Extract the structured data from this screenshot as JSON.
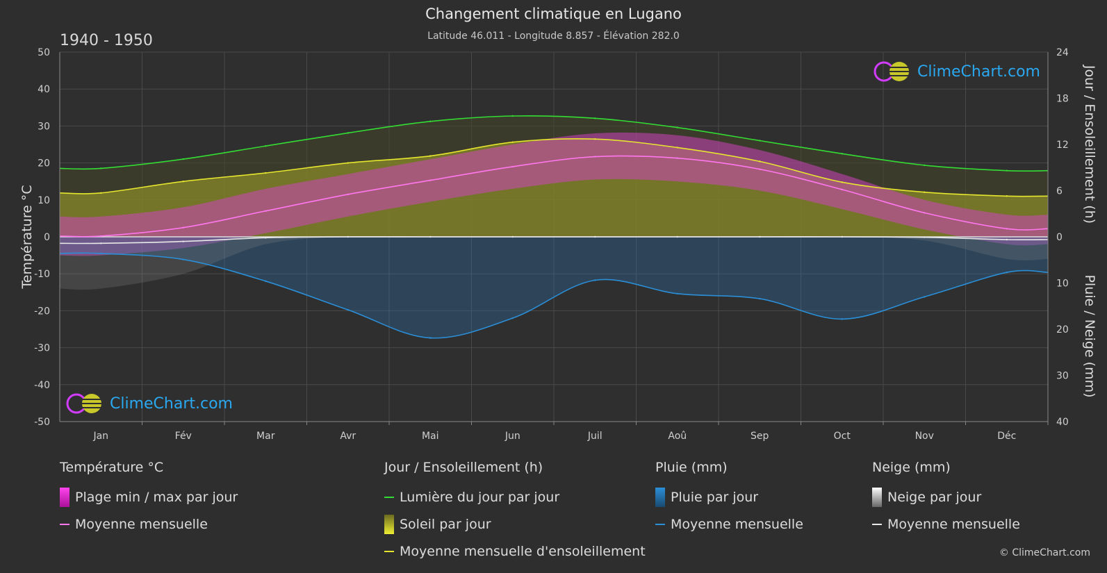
{
  "header": {
    "title": "Changement climatique en Lugano",
    "subtitle": "Latitude 46.011 - Longitude 8.857 - Élévation 282.0",
    "period": "1940 - 1950"
  },
  "logo": {
    "text": "ClimeChart.com"
  },
  "copyright": "© ClimeChart.com",
  "legend": {
    "temperature": {
      "title": "Température °C",
      "range": "Plage min / max par jour",
      "mean": "Moyenne mensuelle"
    },
    "sun": {
      "title": "Jour / Ensoleillement (h)",
      "daylight": "Lumière du jour par jour",
      "sunshine": "Soleil par jour",
      "sun_mean": "Moyenne mensuelle d'ensoleillement"
    },
    "rain": {
      "title": "Pluie (mm)",
      "daily": "Pluie par jour",
      "mean": "Moyenne mensuelle"
    },
    "snow": {
      "title": "Neige (mm)",
      "daily": "Neige par jour",
      "mean": "Moyenne mensuelle"
    }
  },
  "chart_data": {
    "type": "line",
    "months": [
      "Jan",
      "Fév",
      "Mar",
      "Avr",
      "Mai",
      "Jun",
      "Juil",
      "Aoû",
      "Sep",
      "Oct",
      "Nov",
      "Déc"
    ],
    "axes": {
      "left": {
        "label": "Température °C",
        "min": -50,
        "max": 50,
        "ticks": [
          50,
          40,
          30,
          20,
          10,
          0,
          -10,
          -20,
          -30,
          -40,
          -50
        ]
      },
      "right_top": {
        "label": "Jour / Ensoleillement (h)",
        "min": 0,
        "max": 24,
        "ticks": [
          24,
          18,
          12,
          6,
          0
        ]
      },
      "right_bottom": {
        "label": "Pluie / Neige (mm)",
        "min": 0,
        "max": 40,
        "ticks": [
          0,
          10,
          20,
          30,
          40
        ]
      }
    },
    "grid": true,
    "series": [
      {
        "name": "Lumière du jour par jour",
        "unit": "h",
        "color": "#33dd33",
        "values": [
          8.9,
          10.1,
          11.8,
          13.5,
          15.0,
          15.7,
          15.4,
          14.2,
          12.5,
          10.8,
          9.3,
          8.6
        ]
      },
      {
        "name": "Moyenne mensuelle d'ensoleillement",
        "unit": "h",
        "color": "#e6e62e",
        "values": [
          5.7,
          7.2,
          8.3,
          9.6,
          10.5,
          12.3,
          12.7,
          11.6,
          9.8,
          7.1,
          5.8,
          5.3
        ]
      },
      {
        "name": "Moyenne mensuelle (température)",
        "unit": "°C",
        "color": "#ff77ee",
        "values": [
          0.2,
          2.5,
          7.0,
          11.5,
          15.3,
          19.0,
          21.7,
          21.3,
          18.3,
          12.8,
          6.5,
          2.2
        ]
      },
      {
        "name": "Moyenne mensuelle (pluie)",
        "unit": "mm",
        "color": "#2b8fd8",
        "values": [
          3.6,
          4.9,
          9.6,
          15.8,
          21.9,
          17.6,
          9.4,
          12.3,
          13.4,
          17.8,
          13.0,
          7.7
        ]
      },
      {
        "name": "Moyenne mensuelle (neige)",
        "unit": "mm",
        "color": "#e8e8e8",
        "values": [
          1.4,
          1.0,
          0.2,
          0.0,
          0.0,
          0.0,
          0.0,
          0.0,
          0.0,
          0.0,
          0.1,
          0.6
        ]
      }
    ],
    "temperature_range": {
      "name": "Plage min / max par jour",
      "max": [
        5.5,
        8.0,
        13.0,
        17.0,
        21.0,
        25.0,
        28.0,
        27.5,
        23.5,
        17.0,
        10.0,
        6.0
      ],
      "min": [
        -5.0,
        -3.0,
        1.0,
        5.5,
        9.5,
        13.0,
        15.5,
        15.0,
        12.5,
        7.5,
        2.0,
        -2.0
      ]
    },
    "colors": {
      "sunshine_fill": "#8a8a2a",
      "temp_fill": "#cc44bb",
      "rain_fill": "#2b6ea8",
      "snow_fill": "#888888"
    }
  }
}
